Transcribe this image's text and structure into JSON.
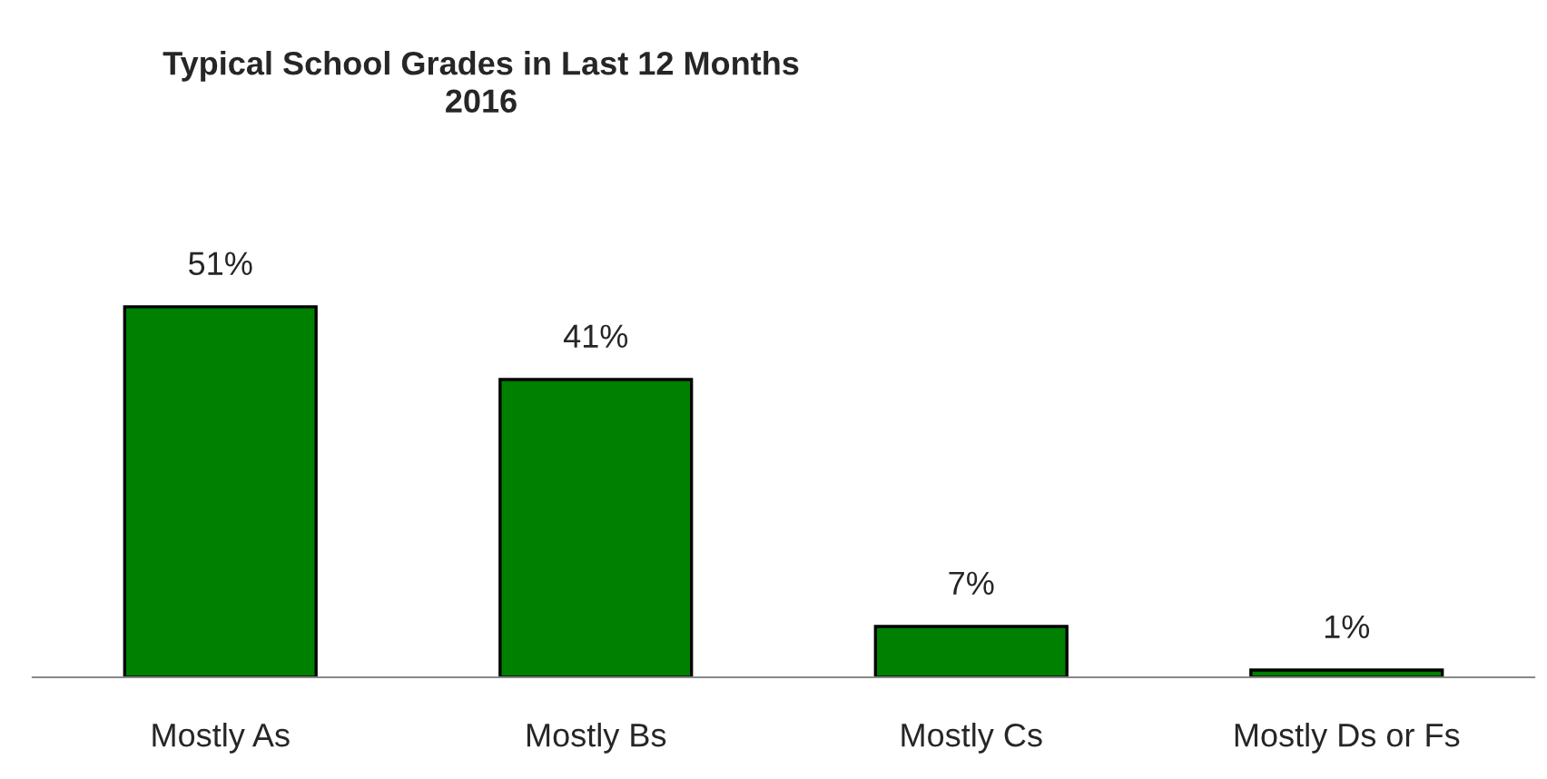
{
  "chart_data": {
    "type": "bar",
    "title": "Typical School Grades in Last 12 Months\n2016",
    "categories": [
      "Mostly As",
      "Mostly Bs",
      "Mostly Cs",
      "Mostly Ds or Fs"
    ],
    "values": [
      51,
      41,
      7,
      1
    ],
    "color": "#008000",
    "data_labels": true,
    "grid": false,
    "legend": false,
    "value_labels": [
      "51%",
      "41%",
      "7%",
      "1%"
    ],
    "tick_labels": "x"
  }
}
